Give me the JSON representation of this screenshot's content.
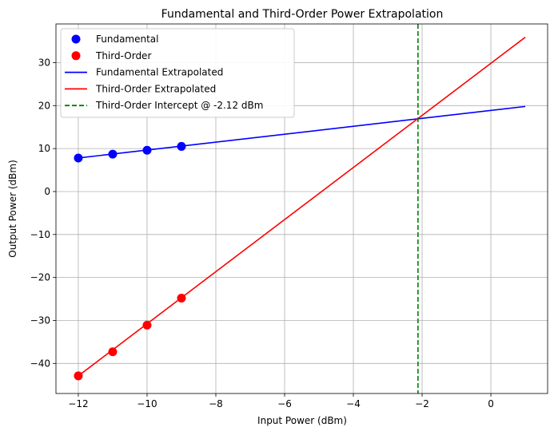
{
  "chart_data": {
    "type": "line",
    "title": "Fundamental and Third-Order Power Extrapolation",
    "xlabel": "Input Power (dBm)",
    "ylabel": "Output Power (dBm)",
    "xlim": [
      -12.65,
      1.65
    ],
    "ylim": [
      -47.0,
      39.0
    ],
    "xticks": [
      -12,
      -10,
      -8,
      -6,
      -4,
      -2,
      0
    ],
    "yticks": [
      -40,
      -30,
      -20,
      -10,
      0,
      10,
      20,
      30
    ],
    "xtick_labels": [
      "−12",
      "−10",
      "−8",
      "−6",
      "−4",
      "−2",
      "0"
    ],
    "ytick_labels": [
      "−40",
      "−30",
      "−20",
      "−10",
      "0",
      "10",
      "20",
      "30"
    ],
    "grid": true,
    "legend_position": "top-left",
    "series": [
      {
        "name": "Fundamental",
        "kind": "markers",
        "color": "#0000ff",
        "x": [
          -12,
          -11,
          -10,
          -9
        ],
        "y": [
          7.8,
          8.7,
          9.6,
          10.5
        ]
      },
      {
        "name": "Third-Order",
        "kind": "markers",
        "color": "#ff0000",
        "x": [
          -12,
          -11,
          -10,
          -9
        ],
        "y": [
          -42.9,
          -37.3,
          -31.1,
          -24.8
        ]
      },
      {
        "name": "Fundamental Extrapolated",
        "kind": "line",
        "color": "#0000ff",
        "x": [
          -12,
          1
        ],
        "y": [
          7.8,
          19.8
        ]
      },
      {
        "name": "Third-Order Extrapolated",
        "kind": "line",
        "color": "#ff0000",
        "x": [
          -12,
          1
        ],
        "y": [
          -42.9,
          35.9
        ]
      },
      {
        "name": "Third-Order Intercept @ -2.12 dBm",
        "kind": "vline",
        "color": "#008000",
        "dashed": true,
        "x_value": -2.12
      }
    ]
  }
}
